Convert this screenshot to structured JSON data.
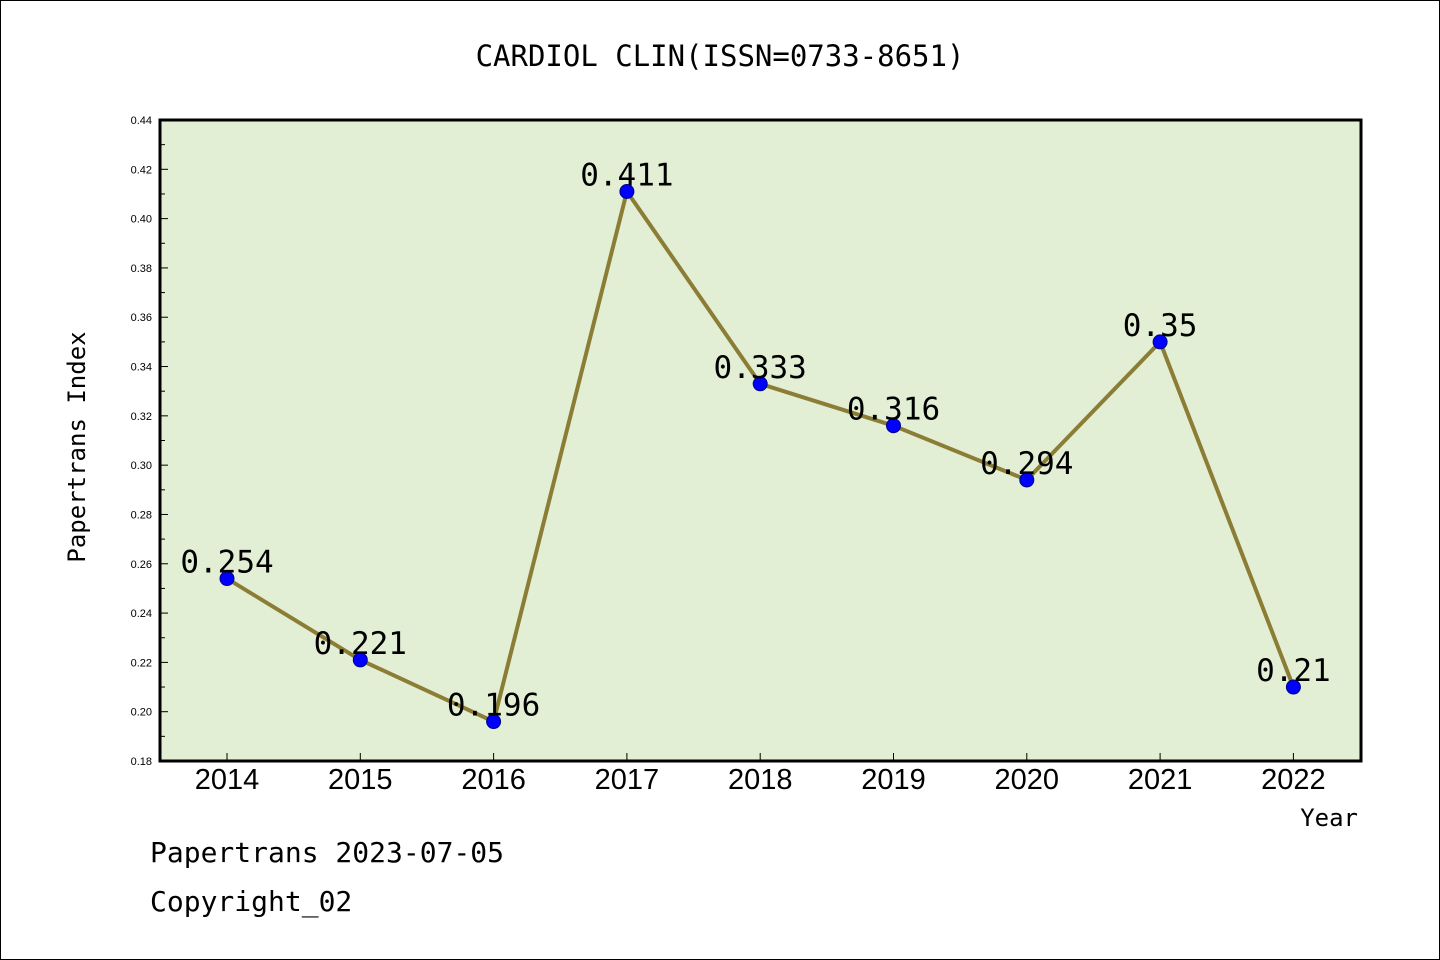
{
  "chart_data": {
    "type": "line",
    "title": "CARDIOL CLIN(ISSN=0733-8651)",
    "xlabel": "Year",
    "ylabel": "Papertrans Index",
    "categories": [
      "2014",
      "2015",
      "2016",
      "2017",
      "2018",
      "2019",
      "2020",
      "2021",
      "2022"
    ],
    "series": [
      {
        "values": [
          0.254,
          0.221,
          0.196,
          0.411,
          0.333,
          0.316,
          0.294,
          0.35,
          0.21
        ]
      }
    ],
    "data_labels": [
      "0.254",
      "0.221",
      "0.196",
      "0.411",
      "0.333",
      "0.316",
      "0.294",
      "0.35",
      "0.21"
    ],
    "y_ticks": [
      "0.18",
      "0.20",
      "0.22",
      "0.24",
      "0.26",
      "0.28",
      "0.30",
      "0.32",
      "0.34",
      "0.36",
      "0.38",
      "0.40",
      "0.42",
      "0.44"
    ],
    "ylim": [
      0.18,
      0.44
    ],
    "grid": false,
    "legend": "none",
    "colors": {
      "plot_background": "#e2efd5",
      "line": "#8b7d35",
      "marker_fill": "#0000ff",
      "marker_stroke": "#00008b",
      "axis": "#000000"
    }
  },
  "footer": {
    "date_text": "Papertrans 2023-07-05",
    "copyright_text": "Copyright_02"
  }
}
